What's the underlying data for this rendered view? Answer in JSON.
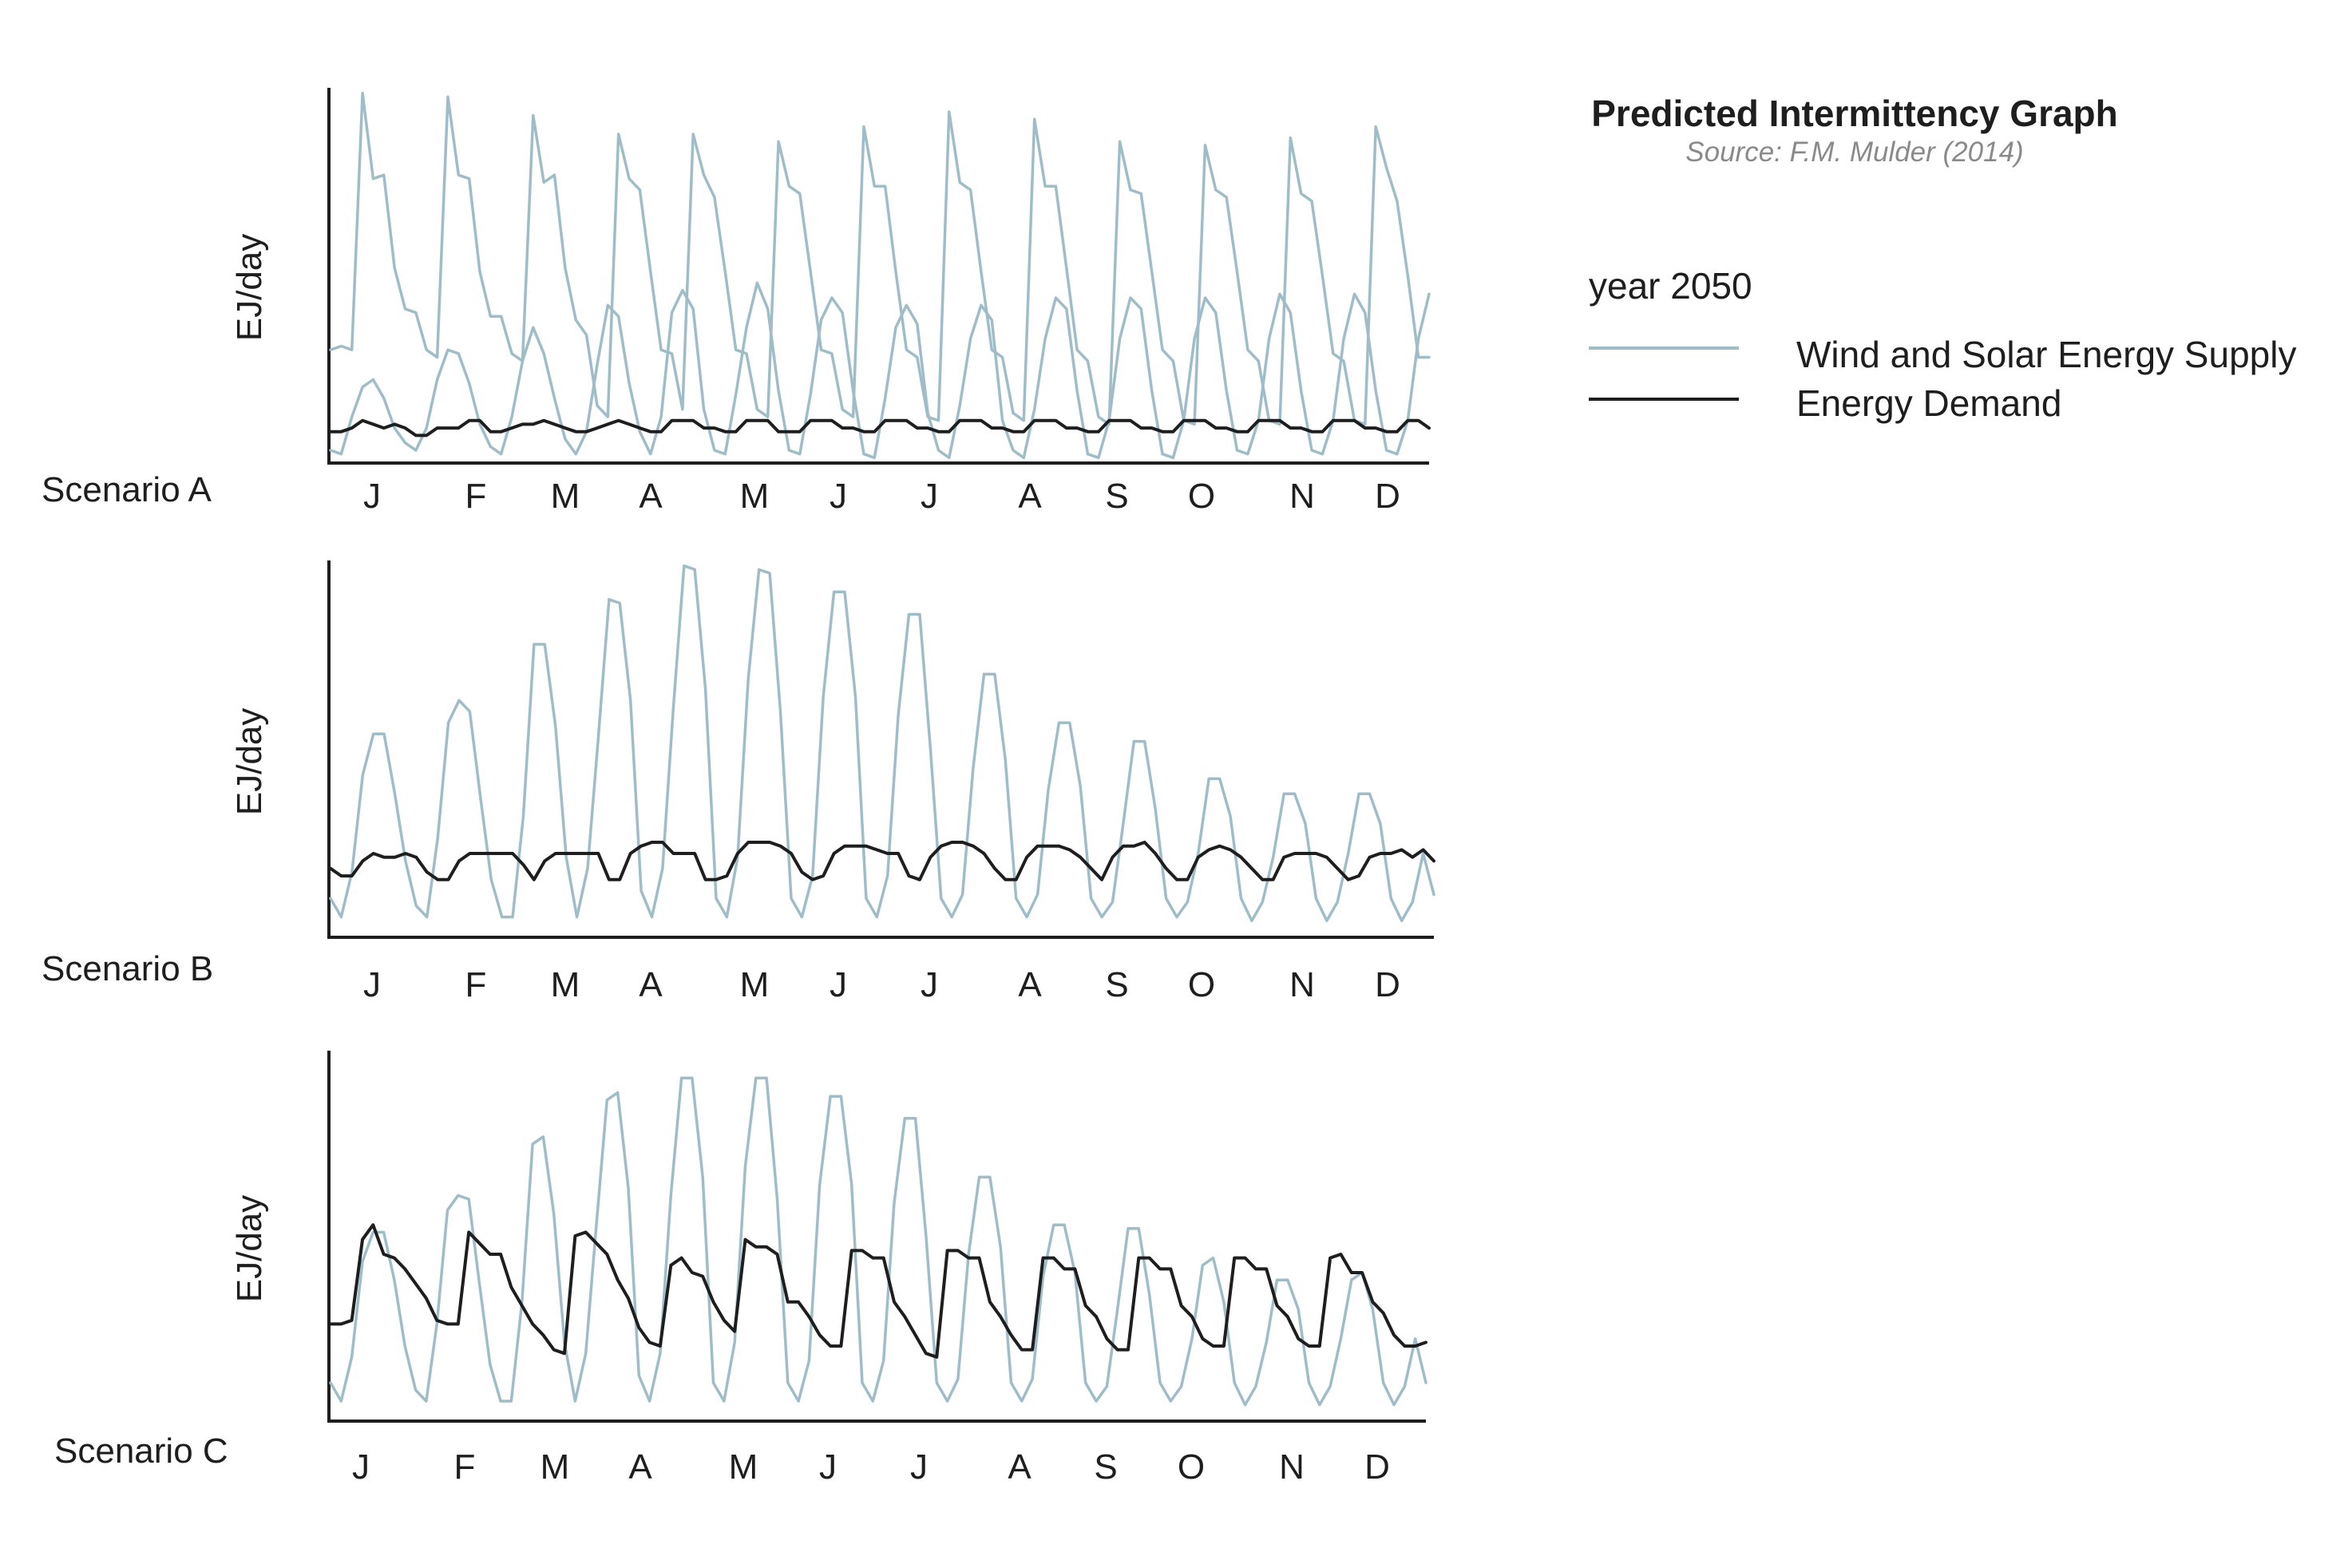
{
  "title": "Predicted Intermittency Graph",
  "source": "Source: F.M. Mulder (2014)",
  "legend": {
    "title": "year 2050",
    "items": [
      {
        "label": "Wind and Solar Energy Supply",
        "color": "#9fbdc8"
      },
      {
        "label": "Energy Demand",
        "color": "#1e1e1e"
      }
    ]
  },
  "colors": {
    "supply": "#9fbdc8",
    "demand": "#1e1e1e",
    "axis": "#1e1e1e"
  },
  "chart_data": [
    {
      "type": "line",
      "panel_label": "Scenario A",
      "ylabel": "EJ/day",
      "categories": [
        "J",
        "F",
        "M",
        "A",
        "M",
        "J",
        "J",
        "A",
        "S",
        "O",
        "N",
        "D"
      ],
      "x": [
        1,
        2,
        3,
        4,
        5,
        6,
        7,
        8,
        9,
        10,
        11,
        12,
        13,
        14,
        15,
        16,
        17,
        18,
        19,
        20,
        21,
        22,
        23,
        24,
        25,
        26,
        27,
        28,
        29,
        30,
        31,
        32,
        33,
        34,
        35,
        36,
        37,
        38,
        39,
        40,
        41,
        42,
        43,
        44,
        45,
        46,
        47,
        48,
        49,
        50,
        51,
        52,
        53,
        54,
        55,
        56,
        57,
        58,
        59,
        60,
        61,
        62,
        63,
        64,
        65,
        66,
        67,
        68,
        69,
        70,
        71,
        72,
        73,
        74,
        75,
        76,
        77,
        78,
        79,
        80,
        81,
        82,
        83,
        84,
        85,
        86,
        87,
        88,
        89,
        90,
        91,
        92,
        93,
        94,
        95,
        96,
        97,
        98,
        99,
        100,
        101,
        102,
        103,
        104
      ],
      "xlim": [
        1,
        104
      ],
      "ylim": [
        0,
        100
      ],
      "grid": false,
      "series": [
        {
          "name": "Wind and Solar Energy Supply",
          "color": "#9fbdc8",
          "values": [
            30,
            31,
            30,
            99,
            76,
            77,
            52,
            41,
            40,
            30,
            28,
            98,
            77,
            76,
            51,
            39,
            39,
            29,
            27,
            93,
            75,
            77,
            52,
            38,
            34,
            15,
            12,
            88,
            76,
            73,
            51,
            30,
            29,
            14,
            88,
            77,
            71,
            51,
            30,
            29,
            14,
            12,
            86,
            74,
            72,
            51,
            30,
            29,
            14,
            12,
            90,
            74,
            74,
            51,
            30,
            28,
            12,
            11,
            94,
            75,
            73,
            51,
            30,
            28,
            13,
            11,
            92,
            74,
            74,
            52,
            30,
            27,
            12,
            10,
            86,
            73,
            72,
            51,
            30,
            27,
            11,
            10,
            85,
            73,
            71,
            51,
            30,
            27,
            11,
            10,
            87,
            72,
            70,
            50,
            29,
            27,
            11,
            10,
            90,
            79,
            70,
            50,
            28,
            28
          ]
        },
        {
          "name": "Wind and Solar Energy Supply (daily)",
          "color": "#9fbdc8",
          "values": [
            3,
            2,
            12,
            20,
            22,
            17,
            9,
            5,
            3,
            9,
            22,
            30,
            29,
            21,
            10,
            4,
            2,
            12,
            27,
            36,
            29,
            17,
            6,
            2,
            8,
            26,
            42,
            39,
            21,
            8,
            2,
            12,
            40,
            46,
            41,
            14,
            3,
            2,
            18,
            36,
            48,
            41,
            19,
            3,
            2,
            18,
            38,
            44,
            40,
            19,
            2,
            1,
            17,
            36,
            42,
            37,
            13,
            3,
            1,
            15,
            33,
            42,
            38,
            11,
            3,
            1,
            14,
            33,
            44,
            41,
            19,
            2,
            1,
            11,
            33,
            44,
            41,
            19,
            2,
            1,
            11,
            33,
            44,
            40,
            19,
            3,
            2,
            11,
            33,
            45,
            40,
            19,
            3,
            2,
            11,
            33,
            45,
            40,
            19,
            3,
            2,
            11,
            33,
            45
          ]
        },
        {
          "name": "Energy Demand",
          "color": "#1e1e1e",
          "values": [
            8,
            8,
            9,
            11,
            10,
            9,
            10,
            9,
            7,
            7,
            9,
            9,
            9,
            11,
            11,
            8,
            8,
            9,
            10,
            10,
            11,
            10,
            9,
            8,
            8,
            9,
            10,
            11,
            10,
            9,
            8,
            8,
            11,
            11,
            11,
            9,
            9,
            8,
            8,
            11,
            11,
            11,
            8,
            8,
            8,
            11,
            11,
            11,
            9,
            9,
            8,
            8,
            11,
            11,
            11,
            9,
            9,
            8,
            8,
            11,
            11,
            11,
            9,
            9,
            8,
            8,
            11,
            11,
            11,
            9,
            9,
            8,
            8,
            11,
            11,
            11,
            9,
            9,
            8,
            8,
            11,
            11,
            11,
            9,
            9,
            8,
            8,
            11,
            11,
            11,
            9,
            9,
            8,
            8,
            11,
            11,
            11,
            9,
            9,
            8,
            8,
            11,
            11,
            9
          ]
        }
      ]
    },
    {
      "type": "line",
      "panel_label": "Scenario B",
      "ylabel": "EJ/day",
      "categories": [
        "J",
        "F",
        "M",
        "A",
        "M",
        "J",
        "J",
        "A",
        "S",
        "O",
        "N",
        "D"
      ],
      "x": [
        1,
        2,
        3,
        4,
        5,
        6,
        7,
        8,
        9,
        10,
        11,
        12,
        13,
        14,
        15,
        16,
        17,
        18,
        19,
        20,
        21,
        22,
        23,
        24,
        25,
        26,
        27,
        28,
        29,
        30,
        31,
        32,
        33,
        34,
        35,
        36,
        37,
        38,
        39,
        40,
        41,
        42,
        43,
        44,
        45,
        46,
        47,
        48,
        49,
        50,
        51,
        52,
        53,
        54,
        55,
        56,
        57,
        58,
        59,
        60,
        61,
        62,
        63,
        64,
        65,
        66,
        67,
        68,
        69,
        70,
        71,
        72,
        73,
        74,
        75,
        76,
        77,
        78,
        79,
        80,
        81,
        82,
        83,
        84,
        85,
        86,
        87,
        88,
        89,
        90,
        91,
        92,
        93,
        94,
        95,
        96,
        97,
        98,
        99,
        100,
        101,
        102,
        103,
        104
      ],
      "xlim": [
        1,
        104
      ],
      "ylim": [
        0,
        100
      ],
      "grid": false,
      "series": [
        {
          "name": "Wind and Solar Energy Supply",
          "color": "#9fbdc8",
          "values": [
            10,
            5,
            17,
            43,
            54,
            54,
            38,
            20,
            8,
            5,
            26,
            57,
            63,
            60,
            37,
            15,
            5,
            5,
            32,
            78,
            78,
            56,
            21,
            5,
            18,
            53,
            90,
            89,
            63,
            12,
            5,
            18,
            61,
            99,
            98,
            66,
            10,
            5,
            21,
            69,
            98,
            97,
            60,
            10,
            5,
            16,
            64,
            92,
            92,
            64,
            10,
            5,
            16,
            59,
            86,
            86,
            50,
            10,
            5,
            11,
            45,
            70,
            70,
            47,
            10,
            5,
            11,
            39,
            57,
            57,
            40,
            10,
            5,
            9,
            30,
            52,
            52,
            34,
            10,
            5,
            9,
            22,
            42,
            42,
            32,
            10,
            4,
            9,
            21,
            38,
            38,
            30,
            10,
            4,
            9,
            22,
            38,
            38,
            30,
            10,
            4,
            9,
            22,
            11
          ]
        },
        {
          "name": "Energy Demand",
          "color": "#1e1e1e",
          "values": [
            18,
            16,
            16,
            20,
            22,
            21,
            21,
            22,
            21,
            17,
            15,
            15,
            20,
            22,
            22,
            22,
            22,
            22,
            19,
            15,
            20,
            22,
            22,
            22,
            22,
            22,
            15,
            15,
            22,
            24,
            25,
            25,
            22,
            22,
            22,
            15,
            15,
            16,
            22,
            25,
            25,
            25,
            24,
            22,
            17,
            15,
            16,
            22,
            24,
            24,
            24,
            23,
            22,
            22,
            16,
            15,
            21,
            24,
            25,
            25,
            24,
            22,
            18,
            15,
            15,
            21,
            24,
            24,
            24,
            23,
            21,
            18,
            15,
            21,
            24,
            24,
            25,
            22,
            18,
            15,
            15,
            21,
            23,
            24,
            23,
            21,
            18,
            15,
            15,
            21,
            22,
            22,
            22,
            21,
            18,
            15,
            16,
            21,
            22,
            22,
            23,
            21,
            23,
            20
          ]
        }
      ]
    },
    {
      "type": "line",
      "panel_label": "Scenario C",
      "ylabel": "EJ/day",
      "categories": [
        "J",
        "F",
        "M",
        "A",
        "M",
        "J",
        "J",
        "A",
        "S",
        "O",
        "N",
        "D"
      ],
      "x": [
        1,
        2,
        3,
        4,
        5,
        6,
        7,
        8,
        9,
        10,
        11,
        12,
        13,
        14,
        15,
        16,
        17,
        18,
        19,
        20,
        21,
        22,
        23,
        24,
        25,
        26,
        27,
        28,
        29,
        30,
        31,
        32,
        33,
        34,
        35,
        36,
        37,
        38,
        39,
        40,
        41,
        42,
        43,
        44,
        45,
        46,
        47,
        48,
        49,
        50,
        51,
        52,
        53,
        54,
        55,
        56,
        57,
        58,
        59,
        60,
        61,
        62,
        63,
        64,
        65,
        66,
        67,
        68,
        69,
        70,
        71,
        72,
        73,
        74,
        75,
        76,
        77,
        78,
        79,
        80,
        81,
        82,
        83,
        84,
        85,
        86,
        87,
        88,
        89,
        90,
        91,
        92,
        93,
        94,
        95,
        96,
        97,
        98,
        99,
        100,
        101,
        102,
        103,
        104
      ],
      "xlim": [
        1,
        104
      ],
      "ylim": [
        0,
        100
      ],
      "grid": false,
      "series": [
        {
          "name": "Wind and Solar Energy Supply",
          "color": "#9fbdc8",
          "values": [
            10,
            5,
            17,
            43,
            51,
            51,
            38,
            20,
            8,
            5,
            26,
            57,
            61,
            60,
            37,
            15,
            5,
            5,
            32,
            75,
            77,
            56,
            21,
            5,
            18,
            53,
            87,
            89,
            63,
            12,
            5,
            18,
            61,
            93,
            93,
            66,
            10,
            5,
            21,
            69,
            93,
            93,
            60,
            10,
            5,
            16,
            64,
            88,
            88,
            64,
            10,
            5,
            16,
            59,
            82,
            82,
            50,
            10,
            5,
            11,
            45,
            66,
            66,
            47,
            10,
            5,
            11,
            39,
            53,
            53,
            40,
            10,
            5,
            9,
            30,
            52,
            52,
            34,
            10,
            5,
            9,
            22,
            42,
            44,
            32,
            10,
            4,
            9,
            21,
            38,
            38,
            30,
            10,
            4,
            9,
            22,
            38,
            40,
            30,
            10,
            4,
            9,
            22,
            10
          ]
        },
        {
          "name": "Energy Demand",
          "color": "#1e1e1e",
          "values": [
            26,
            26,
            27,
            49,
            53,
            45,
            44,
            41,
            37,
            33,
            27,
            26,
            26,
            51,
            48,
            45,
            45,
            36,
            31,
            26,
            23,
            19,
            18,
            50,
            51,
            48,
            45,
            38,
            33,
            25,
            21,
            20,
            42,
            44,
            40,
            39,
            32,
            27,
            24,
            49,
            47,
            47,
            45,
            32,
            32,
            28,
            23,
            20,
            20,
            46,
            46,
            44,
            44,
            32,
            28,
            23,
            18,
            17,
            46,
            46,
            44,
            44,
            32,
            28,
            23,
            19,
            19,
            44,
            44,
            41,
            41,
            31,
            28,
            22,
            19,
            19,
            44,
            44,
            41,
            41,
            31,
            28,
            22,
            20,
            20,
            44,
            44,
            41,
            41,
            31,
            28,
            22,
            20,
            20,
            44,
            45,
            40,
            40,
            32,
            29,
            23,
            20,
            20,
            21
          ]
        }
      ]
    }
  ]
}
